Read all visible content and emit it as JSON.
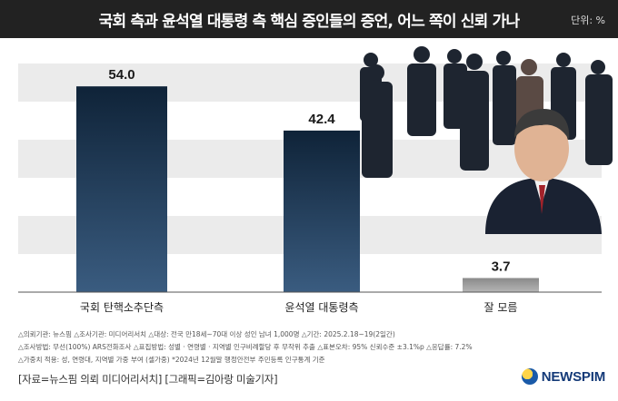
{
  "header": {
    "title": "국회 측과 윤석열 대통령 측 핵심 증인들의 증언, 어느 쪽이 신뢰 가나",
    "unit": "단위: %"
  },
  "chart_data": {
    "type": "bar",
    "categories": [
      "국회 탄핵소추단측",
      "윤석열 대통령측",
      "잘 모름"
    ],
    "values": [
      54.0,
      42.4,
      3.7
    ],
    "value_labels": [
      "54.0",
      "42.4",
      "3.7"
    ],
    "ylim": [
      0,
      60
    ],
    "grid": true
  },
  "colors": {
    "bar_main": "#0f2740",
    "bar_unknown": "#9a9a9a",
    "band": "#ebebeb",
    "header": "#222222"
  },
  "notes": [
    "△의뢰기관: 뉴스핌  △조사기관: 미디어리서치  △대상: 전국 만18세~70대 이상 성인 남녀 1,000명  △기간: 2025.2.18~19(2일간)",
    "△조사방법: 무선(100%) ARS전화조사  △표집방법: 성별 · 연령별 · 지역별 인구비례할당 후 무작위 추출  △표본오차: 95% 신뢰수준 ±3.1%p  △응답률: 7.2%",
    "△가중치 적용: 성, 연령대, 지역별 가중 부여 (셀가중) *2024년 12월말 행정안전부 주민등록 인구통계 기준"
  ],
  "credit": "[자료=뉴스핌 의뢰 미디어리서치] [그래픽=김아랑 미술기자]",
  "brand": {
    "name": "NEWSPIM"
  }
}
